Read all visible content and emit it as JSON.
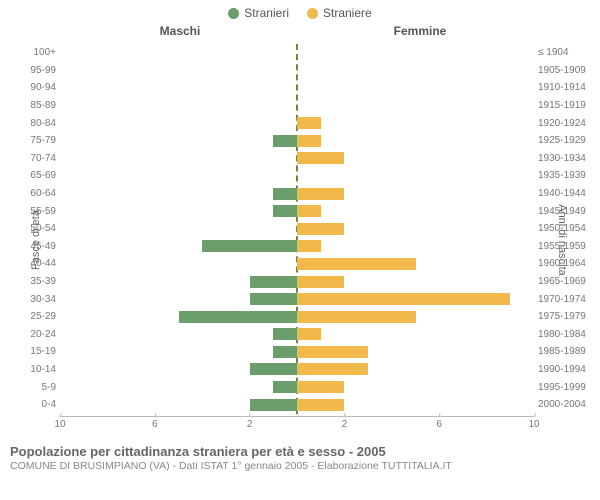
{
  "legend": {
    "male_label": "Stranieri",
    "female_label": "Straniere",
    "male_color": "#6b9e6b",
    "female_color": "#f0b94a"
  },
  "panel_titles": {
    "left": "Maschi",
    "right": "Femmine"
  },
  "axis_labels": {
    "left": "Fasce di età",
    "right": "Anni di nascita"
  },
  "x": {
    "max": 10,
    "ticks": [
      10,
      6,
      2,
      2,
      6,
      10
    ]
  },
  "colors": {
    "male_bar": "#6b9e6b",
    "female_bar": "#f0b94a",
    "center_line": "#8a7a3a",
    "tick_text": "#777",
    "grid": "#bbb"
  },
  "rows": [
    {
      "age": "100+",
      "birth": "≤ 1904",
      "m": 0,
      "f": 0
    },
    {
      "age": "95-99",
      "birth": "1905-1909",
      "m": 0,
      "f": 0
    },
    {
      "age": "90-94",
      "birth": "1910-1914",
      "m": 0,
      "f": 0
    },
    {
      "age": "85-89",
      "birth": "1915-1919",
      "m": 0,
      "f": 0
    },
    {
      "age": "80-84",
      "birth": "1920-1924",
      "m": 0,
      "f": 1
    },
    {
      "age": "75-79",
      "birth": "1925-1929",
      "m": 1,
      "f": 1
    },
    {
      "age": "70-74",
      "birth": "1930-1934",
      "m": 0,
      "f": 2
    },
    {
      "age": "65-69",
      "birth": "1935-1939",
      "m": 0,
      "f": 0
    },
    {
      "age": "60-64",
      "birth": "1940-1944",
      "m": 1,
      "f": 2
    },
    {
      "age": "55-59",
      "birth": "1945-1949",
      "m": 1,
      "f": 1
    },
    {
      "age": "50-54",
      "birth": "1950-1954",
      "m": 0,
      "f": 2
    },
    {
      "age": "45-49",
      "birth": "1955-1959",
      "m": 4,
      "f": 1
    },
    {
      "age": "40-44",
      "birth": "1960-1964",
      "m": 0,
      "f": 5
    },
    {
      "age": "35-39",
      "birth": "1965-1969",
      "m": 2,
      "f": 2
    },
    {
      "age": "30-34",
      "birth": "1970-1974",
      "m": 2,
      "f": 9
    },
    {
      "age": "25-29",
      "birth": "1975-1979",
      "m": 5,
      "f": 5
    },
    {
      "age": "20-24",
      "birth": "1980-1984",
      "m": 1,
      "f": 1
    },
    {
      "age": "15-19",
      "birth": "1985-1989",
      "m": 1,
      "f": 3
    },
    {
      "age": "10-14",
      "birth": "1990-1994",
      "m": 2,
      "f": 3
    },
    {
      "age": "5-9",
      "birth": "1995-1999",
      "m": 1,
      "f": 2
    },
    {
      "age": "0-4",
      "birth": "2000-2004",
      "m": 2,
      "f": 2
    }
  ],
  "footer": {
    "title": "Popolazione per cittadinanza straniera per età e sesso - 2005",
    "sub": "COMUNE DI BRUSIMPIANO (VA) - Dati ISTAT 1° gennaio 2005 - Elaborazione TUTTITALIA.IT"
  }
}
